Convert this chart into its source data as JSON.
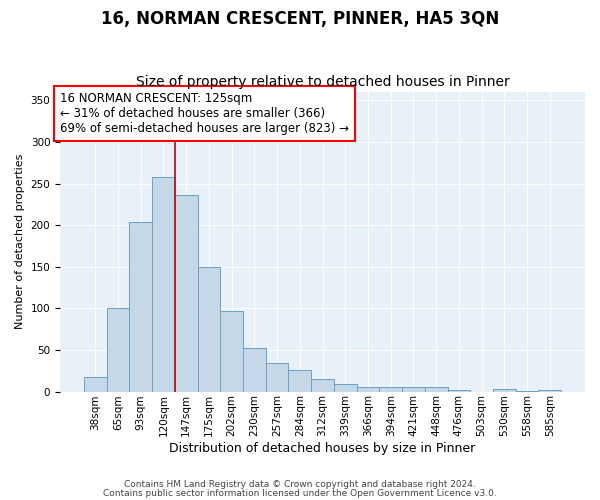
{
  "title1": "16, NORMAN CRESCENT, PINNER, HA5 3QN",
  "title2": "Size of property relative to detached houses in Pinner",
  "xlabel": "Distribution of detached houses by size in Pinner",
  "ylabel": "Number of detached properties",
  "categories": [
    "38sqm",
    "65sqm",
    "93sqm",
    "120sqm",
    "147sqm",
    "175sqm",
    "202sqm",
    "230sqm",
    "257sqm",
    "284sqm",
    "312sqm",
    "339sqm",
    "366sqm",
    "394sqm",
    "421sqm",
    "448sqm",
    "476sqm",
    "503sqm",
    "530sqm",
    "558sqm",
    "585sqm"
  ],
  "values": [
    18,
    100,
    204,
    258,
    236,
    150,
    97,
    52,
    34,
    26,
    15,
    9,
    6,
    5,
    6,
    5,
    2,
    0,
    3,
    1,
    2
  ],
  "bar_color": "#c5d8e8",
  "bar_edge_color": "#6aa0c7",
  "bg_color": "#e8f0f8",
  "vline_x": 3.5,
  "vline_color": "#cc0000",
  "annotation_lines": [
    "16 NORMAN CRESCENT: 125sqm",
    "← 31% of detached houses are smaller (366)",
    "69% of semi-detached houses are larger (823) →"
  ],
  "footer1": "Contains HM Land Registry data © Crown copyright and database right 2024.",
  "footer2": "Contains public sector information licensed under the Open Government Licence v3.0.",
  "ylim": [
    0,
    360
  ],
  "title1_fontsize": 12,
  "title2_fontsize": 10,
  "ann_fontsize": 8.5,
  "ylabel_fontsize": 8,
  "xlabel_fontsize": 9,
  "tick_fontsize": 7.5,
  "footer_fontsize": 6.5
}
